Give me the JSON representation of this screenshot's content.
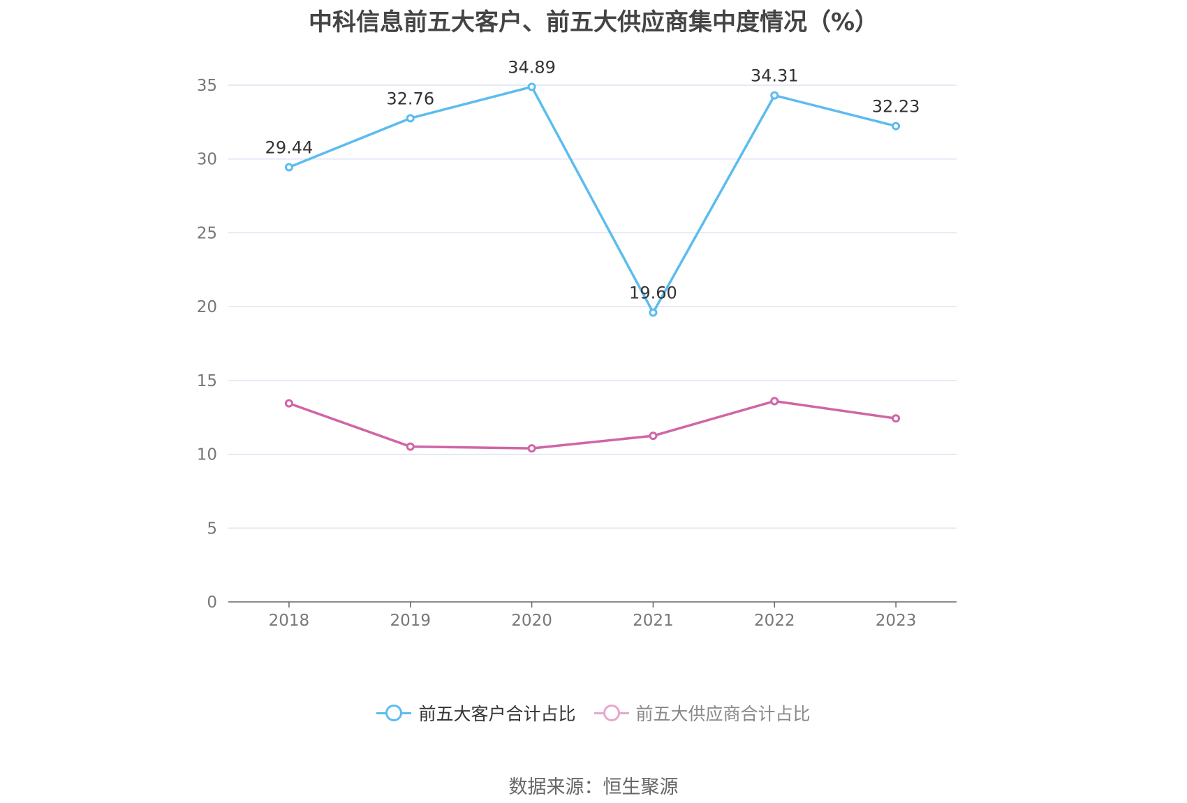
{
  "title": "中科信息前五大客户、前五大供应商集中度情况（%）",
  "source": "数据来源：恒生聚源",
  "chart_data": {
    "type": "line",
    "title": "中科信息前五大客户、前五大供应商集中度情况（%）",
    "categories": [
      "2018",
      "2019",
      "2020",
      "2021",
      "2022",
      "2023"
    ],
    "ylim": [
      0,
      35
    ],
    "yticks": [
      0,
      5,
      10,
      15,
      20,
      25,
      30,
      35
    ],
    "grid": true,
    "legend_position": "bottom",
    "series": [
      {
        "name": "前五大客户合计占比",
        "color": "#5bbcef",
        "values": [
          29.44,
          32.76,
          34.89,
          19.6,
          34.31,
          32.23
        ],
        "labels": [
          "29.44",
          "32.76",
          "34.89",
          "19.60",
          "34.31",
          "32.23"
        ]
      },
      {
        "name": "前五大供应商合计占比",
        "color": "#d065a6",
        "values": [
          13.45,
          10.52,
          10.4,
          11.25,
          13.6,
          12.43
        ]
      }
    ]
  },
  "legend": {
    "items": [
      {
        "label": "前五大客户合计占比",
        "color": "#5bbcef",
        "text_color": "#333333"
      },
      {
        "label": "前五大供应商合计占比",
        "color": "#e8a6cf",
        "text_color": "#888888"
      }
    ]
  }
}
